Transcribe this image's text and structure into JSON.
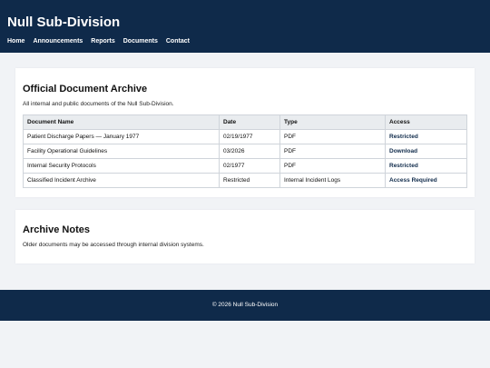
{
  "header": {
    "site_title": "Null Sub-Division",
    "nav": [
      "Home",
      "Announcements",
      "Reports",
      "Documents",
      "Contact"
    ]
  },
  "archive": {
    "title": "Official Document Archive",
    "description": "All internal and public documents of the Null Sub-Division.",
    "columns": [
      "Document Name",
      "Date",
      "Type",
      "Access"
    ],
    "rows": [
      {
        "name": "Patient Discharge Papers — January 1977",
        "date": "02/19/1977",
        "type": "PDF",
        "access": "Restricted"
      },
      {
        "name": "Facility Operational Guidelines",
        "date": "03/2026",
        "type": "PDF",
        "access": "Download"
      },
      {
        "name": "Internal Security Protocols",
        "date": "02/1977",
        "type": "PDF",
        "access": "Restricted"
      },
      {
        "name": "Classified Incident Archive",
        "date": "Restricted",
        "type": "Internal Incident Logs",
        "access": "Access Required"
      }
    ]
  },
  "notes": {
    "title": "Archive Notes",
    "text": "Older documents may be accessed through internal division systems."
  },
  "footer": {
    "text": "© 2026 Null Sub-Division"
  }
}
